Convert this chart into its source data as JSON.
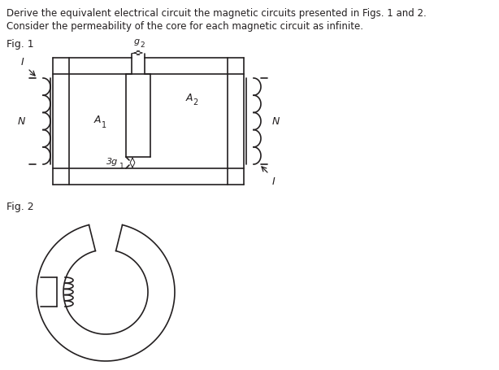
{
  "title_line1": "Derive the equivalent electrical circuit the magnetic circuits presented in Figs. 1 and 2.",
  "title_line2": "Consider the permeability of the core for each magnetic circuit as infinite.",
  "fig1_label": "Fig. 1",
  "fig2_label": "Fig. 2",
  "text_color": "#231f20",
  "line_color": "#231f20",
  "background_color": "#ffffff",
  "lw": 1.2
}
